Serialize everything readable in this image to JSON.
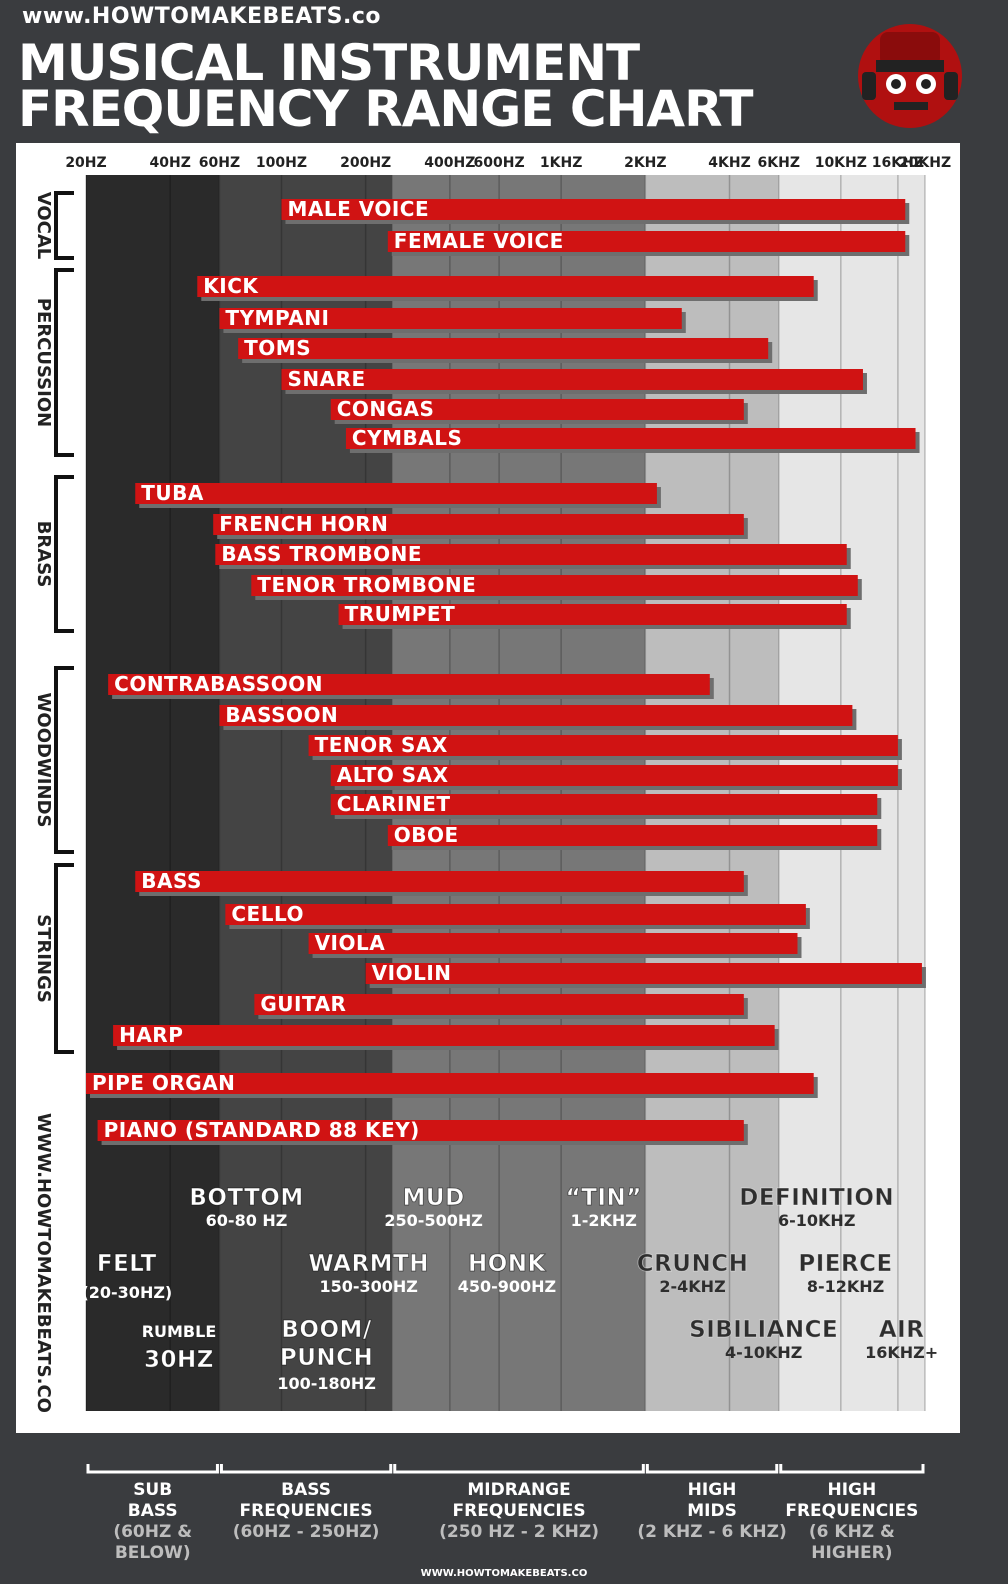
{
  "header": {
    "site": "www.HOWTOMAKEBEATS.co",
    "title_line1": "MUSICAL INSTRUMENT",
    "title_line2": "FREQUENCY RANGE CHART"
  },
  "colors": {
    "bar": "#d01313",
    "bar_shadow": "#6e6e6e",
    "band_sub": "#2a2a2a",
    "band_bass": "#444444",
    "band_mid": "#777777",
    "band_highmid": "#bdbdbd",
    "band_high": "#e6e6e6"
  },
  "side_url": "WWW.HOWTOMAKEBEATS.CO",
  "chart_data": {
    "type": "bar",
    "orientation": "horizontal-range",
    "x_scale": "log",
    "x_unit": "Hz",
    "xlim": [
      20,
      20000
    ],
    "tick_values": [
      20,
      40,
      60,
      100,
      200,
      400,
      600,
      1000,
      2000,
      4000,
      6000,
      10000,
      16000,
      20000
    ],
    "tick_labels": [
      "20HZ",
      "40HZ",
      "60HZ",
      "100HZ",
      "200HZ",
      "400HZ",
      "600HZ",
      "1KHZ",
      "2KHZ",
      "4KHZ",
      "6KHZ",
      "10KHZ",
      "16KHZ",
      "20KHZ"
    ],
    "bands": [
      {
        "from": 20,
        "to": 60
      },
      {
        "from": 60,
        "to": 250
      },
      {
        "from": 250,
        "to": 2000
      },
      {
        "from": 2000,
        "to": 6000
      },
      {
        "from": 6000,
        "to": 20000
      }
    ],
    "groups": [
      {
        "name": "VOCAL",
        "instruments": [
          {
            "label": "MALE VOICE",
            "low": 100,
            "high": 17000
          },
          {
            "label": "FEMALE VOICE",
            "low": 240,
            "high": 17000
          }
        ]
      },
      {
        "name": "PERCUSSION",
        "instruments": [
          {
            "label": "KICK",
            "low": 50,
            "high": 8000
          },
          {
            "label": "TYMPANI",
            "low": 60,
            "high": 2700
          },
          {
            "label": "TOMS",
            "low": 70,
            "high": 5500
          },
          {
            "label": "SNARE",
            "low": 100,
            "high": 12000
          },
          {
            "label": "CONGAS",
            "low": 150,
            "high": 4500
          },
          {
            "label": "CYMBALS",
            "low": 170,
            "high": 18500
          }
        ]
      },
      {
        "name": "BRASS",
        "instruments": [
          {
            "label": "TUBA",
            "low": 30,
            "high": 2200
          },
          {
            "label": "FRENCH HORN",
            "low": 57,
            "high": 4500
          },
          {
            "label": "BASS TROMBONE",
            "low": 58,
            "high": 10500
          },
          {
            "label": "TENOR TROMBONE",
            "low": 78,
            "high": 11500
          },
          {
            "label": "TRUMPET",
            "low": 160,
            "high": 10500
          }
        ]
      },
      {
        "name": "WOODWINDS",
        "instruments": [
          {
            "label": "CONTRABASSOON",
            "low": 24,
            "high": 3400
          },
          {
            "label": "BASSOON",
            "low": 60,
            "high": 11000
          },
          {
            "label": "TENOR SAX",
            "low": 125,
            "high": 16000
          },
          {
            "label": "ALTO SAX",
            "low": 150,
            "high": 16000
          },
          {
            "label": "CLARINET",
            "low": 150,
            "high": 13500
          },
          {
            "label": "OBOE",
            "low": 240,
            "high": 13500
          }
        ]
      },
      {
        "name": "STRINGS",
        "instruments": [
          {
            "label": "BASS",
            "low": 30,
            "high": 4500
          },
          {
            "label": "CELLO",
            "low": 63,
            "high": 7500
          },
          {
            "label": "VIOLA",
            "low": 125,
            "high": 7000
          },
          {
            "label": "VIOLIN",
            "low": 200,
            "high": 19500
          },
          {
            "label": "GUITAR",
            "low": 80,
            "high": 4500
          },
          {
            "label": "HARP",
            "low": 25,
            "high": 5800
          }
        ]
      },
      {
        "name": "",
        "instruments": [
          {
            "label": "PIPE ORGAN",
            "low": 20,
            "high": 8000
          },
          {
            "label": "PIANO (STANDARD 88 KEY)",
            "low": 22,
            "high": 4500
          }
        ]
      }
    ],
    "annotations": [
      {
        "name": "BOTTOM",
        "range": "60-80 HZ",
        "center_hz": 75,
        "row": 1,
        "dark": false
      },
      {
        "name": "MUD",
        "range": "250-500HZ",
        "center_hz": 350,
        "row": 1,
        "dark": false
      },
      {
        "name": "“TIN”",
        "range": "1-2KHZ",
        "center_hz": 1420,
        "row": 1,
        "dark": false
      },
      {
        "name": "DEFINITION",
        "range": "6-10KHZ",
        "center_hz": 8200,
        "row": 1,
        "dark": true
      },
      {
        "name": "FELT",
        "range": "(20-30HZ)",
        "center_hz": 28,
        "row": 2,
        "dark": false,
        "big": true
      },
      {
        "name": "WARMTH",
        "range": "150-300HZ",
        "center_hz": 205,
        "row": 2,
        "dark": false
      },
      {
        "name": "HONK",
        "range": "450-900HZ",
        "center_hz": 640,
        "row": 2,
        "dark": false
      },
      {
        "name": "CRUNCH",
        "range": "2-4KHZ",
        "center_hz": 2950,
        "row": 2,
        "dark": true
      },
      {
        "name": "PIERCE",
        "range": "8-12KHZ",
        "center_hz": 10400,
        "row": 2,
        "dark": true
      },
      {
        "name": "RUMBLE",
        "range": "30HZ",
        "center_hz": 43,
        "row": 3,
        "dark": false,
        "swap": true
      },
      {
        "name": "BOOM/",
        "range2": "PUNCH",
        "range": "100-180HZ",
        "center_hz": 145,
        "row": 3,
        "dark": false
      },
      {
        "name": "SIBILIANCE",
        "range": "4-10KHZ",
        "center_hz": 5300,
        "row": 3,
        "dark": true
      },
      {
        "name": "AIR",
        "range": "16KHZ+",
        "center_hz": 16500,
        "row": 3,
        "dark": true
      }
    ]
  },
  "footer": {
    "bands": [
      {
        "l1": "SUB",
        "l2": "BASS",
        "l3": "(60HZ &",
        "l4": "BELOW)"
      },
      {
        "l1": "BASS",
        "l2": "FREQUENCIES",
        "l3": "(60HZ - 250HZ)",
        "l4": ""
      },
      {
        "l1": "MIDRANGE",
        "l2": "FREQUENCIES",
        "l3": "(250 HZ - 2 KHZ)",
        "l4": ""
      },
      {
        "l1": "HIGH",
        "l2": "MIDS",
        "l3": "(2 KHZ - 6 KHZ)",
        "l4": ""
      },
      {
        "l1": "HIGH",
        "l2": "FREQUENCIES",
        "l3": "(6 KHZ & HIGHER)",
        "l4": ""
      }
    ],
    "site": "WWW.HOWTOMAKEBEATS.CO"
  }
}
